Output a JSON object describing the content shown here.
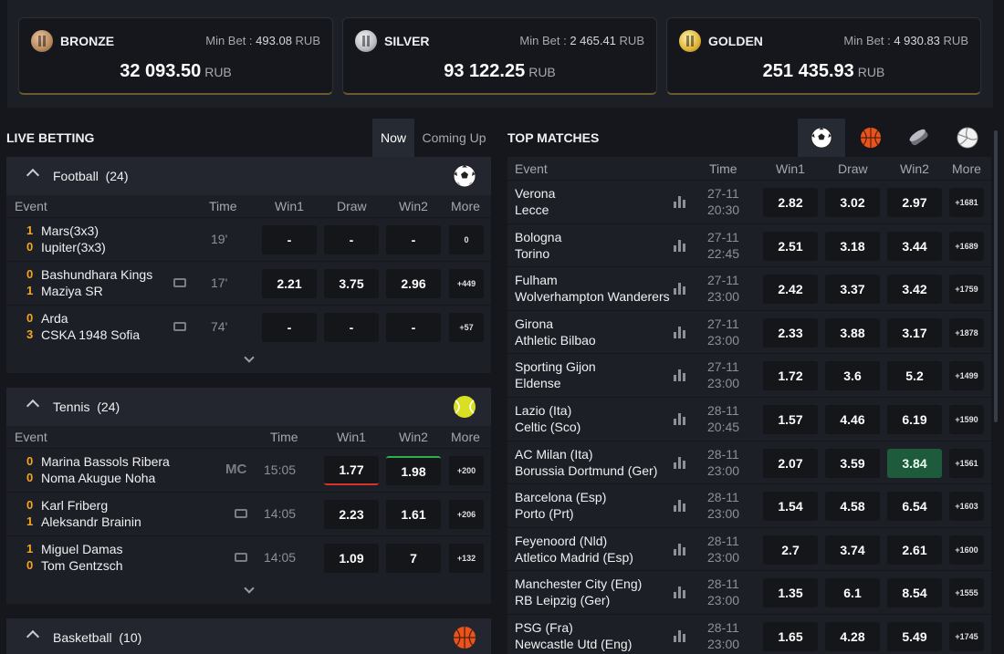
{
  "jackpots": [
    {
      "tier": "BRONZE",
      "min_bet_label": "Min Bet :",
      "min_bet_value": "493.08",
      "min_bet_currency": "RUB",
      "amount": "32 093.50",
      "currency": "RUB",
      "color": "#b98a5e"
    },
    {
      "tier": "SILVER",
      "min_bet_label": "Min Bet :",
      "min_bet_value": "2 465.41",
      "min_bet_currency": "RUB",
      "amount": "93 122.25",
      "currency": "RUB",
      "color": "#b9bcc2"
    },
    {
      "tier": "GOLDEN",
      "min_bet_label": "Min Bet :",
      "min_bet_value": "4 930.83",
      "min_bet_currency": "RUB",
      "amount": "251 435.93",
      "currency": "RUB",
      "color": "#e0b43a"
    }
  ],
  "live": {
    "title": "LIVE BETTING",
    "tab_now": "Now",
    "tab_coming": "Coming Up",
    "football": {
      "name": "Football",
      "count": "(24)",
      "cols": {
        "event": "Event",
        "time": "Time",
        "win1": "Win1",
        "draw": "Draw",
        "win2": "Win2",
        "more": "More"
      },
      "rows": [
        {
          "s1": "1",
          "s2": "0",
          "t1": "Mars(3x3)",
          "t2": "Iupiter(3x3)",
          "time": "19'",
          "w1": "-",
          "d": "-",
          "w2": "-",
          "more": "0"
        },
        {
          "s1": "0",
          "s2": "1",
          "t1": "Bashundhara Kings",
          "t2": "Maziya SR",
          "time": "17'",
          "w1": "2.21",
          "d": "3.75",
          "w2": "2.96",
          "more": "+449"
        },
        {
          "s1": "0",
          "s2": "3",
          "t1": "Arda",
          "t2": "CSKA 1948 Sofia",
          "time": "74'",
          "w1": "-",
          "d": "-",
          "w2": "-",
          "more": "+57"
        }
      ]
    },
    "tennis": {
      "name": "Tennis",
      "count": "(24)",
      "cols": {
        "event": "Event",
        "time": "Time",
        "win1": "Win1",
        "win2": "Win2",
        "more": "More"
      },
      "rows": [
        {
          "s1": "0",
          "s2": "0",
          "t1": "Marina Bassols Ribera",
          "t2": "Noma Akugue Noha",
          "badge": "MC",
          "time": "15:05",
          "w1": "1.77",
          "w2": "1.98",
          "more": "+200"
        },
        {
          "s1": "0",
          "s2": "1",
          "t1": "Karl Friberg",
          "t2": "Aleksandr Brainin",
          "time": "14:05",
          "w1": "2.23",
          "w2": "1.61",
          "more": "+206"
        },
        {
          "s1": "1",
          "s2": "0",
          "t1": "Miguel Damas",
          "t2": "Tom Gentzsch",
          "time": "14:05",
          "w1": "1.09",
          "w2": "7",
          "more": "+132"
        }
      ]
    },
    "basketball": {
      "name": "Basketball",
      "count": "(10)"
    }
  },
  "top": {
    "title": "TOP MATCHES",
    "cols": {
      "event": "Event",
      "time": "Time",
      "win1": "Win1",
      "draw": "Draw",
      "win2": "Win2",
      "more": "More"
    },
    "rows": [
      {
        "h": "Verona",
        "a": "Lecce",
        "d1": "27-11",
        "d2": "20:30",
        "w1": "2.82",
        "d": "3.02",
        "w2": "2.97",
        "more": "+1681"
      },
      {
        "h": "Bologna",
        "a": "Torino",
        "d1": "27-11",
        "d2": "22:45",
        "w1": "2.51",
        "d": "3.18",
        "w2": "3.44",
        "more": "+1689"
      },
      {
        "h": "Fulham",
        "a": "Wolverhampton Wanderers",
        "d1": "27-11",
        "d2": "23:00",
        "w1": "2.42",
        "d": "3.37",
        "w2": "3.42",
        "more": "+1759"
      },
      {
        "h": "Girona",
        "a": "Athletic Bilbao",
        "d1": "27-11",
        "d2": "23:00",
        "w1": "2.33",
        "d": "3.88",
        "w2": "3.17",
        "more": "+1878"
      },
      {
        "h": "Sporting Gijon",
        "a": "Eldense",
        "d1": "27-11",
        "d2": "23:00",
        "w1": "1.72",
        "d": "3.6",
        "w2": "5.2",
        "more": "+1499"
      },
      {
        "h": "Lazio (Ita)",
        "a": "Celtic (Sco)",
        "d1": "28-11",
        "d2": "20:45",
        "w1": "1.57",
        "d": "4.46",
        "w2": "6.19",
        "more": "+1590"
      },
      {
        "h": "AC Milan (Ita)",
        "a": "Borussia Dortmund (Ger)",
        "d1": "28-11",
        "d2": "23:00",
        "w1": "2.07",
        "d": "3.59",
        "w2": "3.84",
        "more": "+1561",
        "highlight": "w2"
      },
      {
        "h": "Barcelona (Esp)",
        "a": "Porto (Prt)",
        "d1": "28-11",
        "d2": "23:00",
        "w1": "1.54",
        "d": "4.58",
        "w2": "6.54",
        "more": "+1603"
      },
      {
        "h": "Feyenoord (Nld)",
        "a": "Atletico Madrid (Esp)",
        "d1": "28-11",
        "d2": "23:00",
        "w1": "2.7",
        "d": "3.74",
        "w2": "2.61",
        "more": "+1600"
      },
      {
        "h": "Manchester City (Eng)",
        "a": "RB Leipzig (Ger)",
        "d1": "28-11",
        "d2": "23:00",
        "w1": "1.35",
        "d": "6.1",
        "w2": "8.54",
        "more": "+1555"
      },
      {
        "h": "PSG (Fra)",
        "a": "Newcastle Utd (Eng)",
        "d1": "28-11",
        "d2": "23:00",
        "w1": "1.65",
        "d": "4.28",
        "w2": "5.49",
        "more": "+1745"
      }
    ]
  },
  "icons": {
    "football": "football-icon",
    "basketball": "basketball-icon",
    "tennis": "tennis-ball-icon",
    "hockey": "hockey-puck-icon",
    "volleyball": "volleyball-icon"
  }
}
